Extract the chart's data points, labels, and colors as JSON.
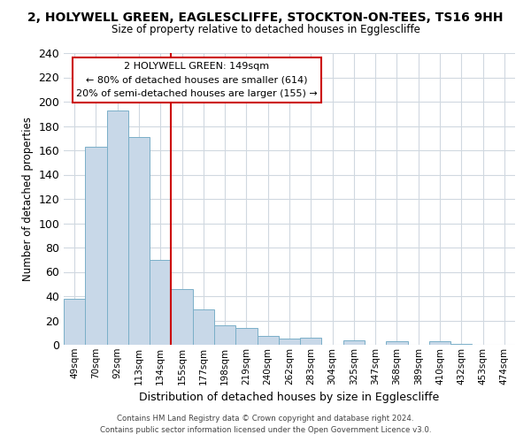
{
  "title": "2, HOLYWELL GREEN, EAGLESCLIFFE, STOCKTON-ON-TEES, TS16 9HH",
  "subtitle": "Size of property relative to detached houses in Egglescliffe",
  "xlabel": "Distribution of detached houses by size in Egglescliffe",
  "ylabel": "Number of detached properties",
  "bin_labels": [
    "49sqm",
    "70sqm",
    "92sqm",
    "113sqm",
    "134sqm",
    "155sqm",
    "177sqm",
    "198sqm",
    "219sqm",
    "240sqm",
    "262sqm",
    "283sqm",
    "304sqm",
    "325sqm",
    "347sqm",
    "368sqm",
    "389sqm",
    "410sqm",
    "432sqm",
    "453sqm",
    "474sqm"
  ],
  "bar_values": [
    38,
    163,
    193,
    171,
    70,
    46,
    29,
    16,
    14,
    7,
    5,
    6,
    0,
    4,
    0,
    3,
    0,
    3,
    1,
    0,
    0
  ],
  "bar_color": "#c8d8e8",
  "bar_edge_color": "#7aafc8",
  "ylim": [
    0,
    240
  ],
  "yticks": [
    0,
    20,
    40,
    60,
    80,
    100,
    120,
    140,
    160,
    180,
    200,
    220,
    240
  ],
  "vline_color": "#cc0000",
  "annotation_title": "2 HOLYWELL GREEN: 149sqm",
  "annotation_line1": "← 80% of detached houses are smaller (614)",
  "annotation_line2": "20% of semi-detached houses are larger (155) →",
  "annotation_box_color": "#ffffff",
  "annotation_box_edge": "#cc0000",
  "footer1": "Contains HM Land Registry data © Crown copyright and database right 2024.",
  "footer2": "Contains public sector information licensed under the Open Government Licence v3.0.",
  "background_color": "#ffffff",
  "grid_color": "#d0d8e0"
}
